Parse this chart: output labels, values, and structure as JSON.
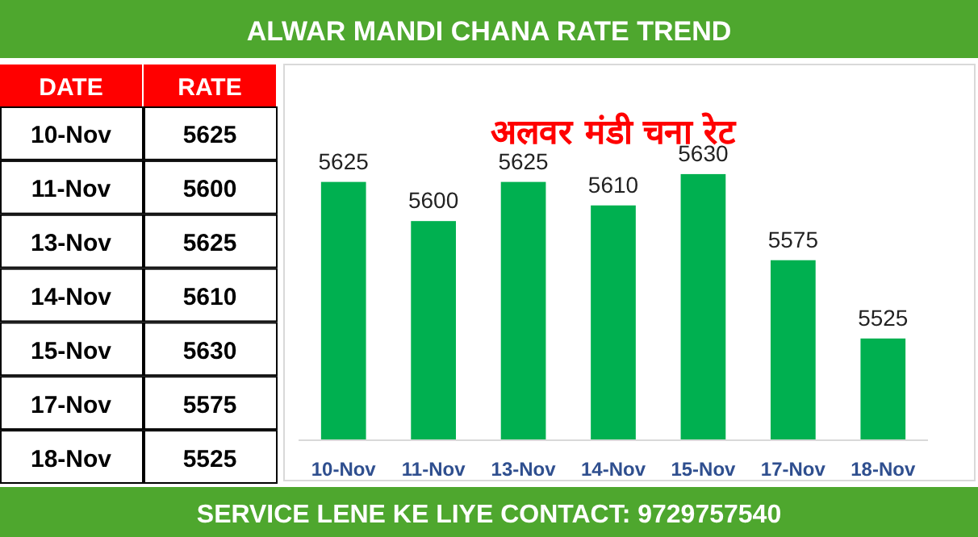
{
  "chart_data": [
    {
      "type": "other",
      "annotations": [
        "DATE",
        "RATE",
        "10-Nov",
        "5625",
        "11-Nov",
        "5600",
        "13-Nov",
        "5625",
        "14-Nov",
        "5610",
        "15-Nov",
        "5630",
        "17-Nov",
        "5575",
        "18-Nov",
        "5525"
      ]
    },
    {
      "type": "bar",
      "title": "ALWAR MANDI CHANA RATE TREND",
      "subtitle": "अलवर मंडी चना रेट",
      "categories": [
        "10-Nov",
        "11-Nov",
        "13-Nov",
        "14-Nov",
        "15-Nov",
        "17-Nov",
        "18-Nov"
      ],
      "values": [
        5625,
        5600,
        5625,
        5610,
        5630,
        5575,
        5525
      ],
      "color": "#00b050",
      "ylim": [
        5460,
        5700
      ],
      "data_labels": true,
      "annotations": [
        "SERVICE LENE KE LIYE CONTACT: 9729757540"
      ]
    }
  ]
}
